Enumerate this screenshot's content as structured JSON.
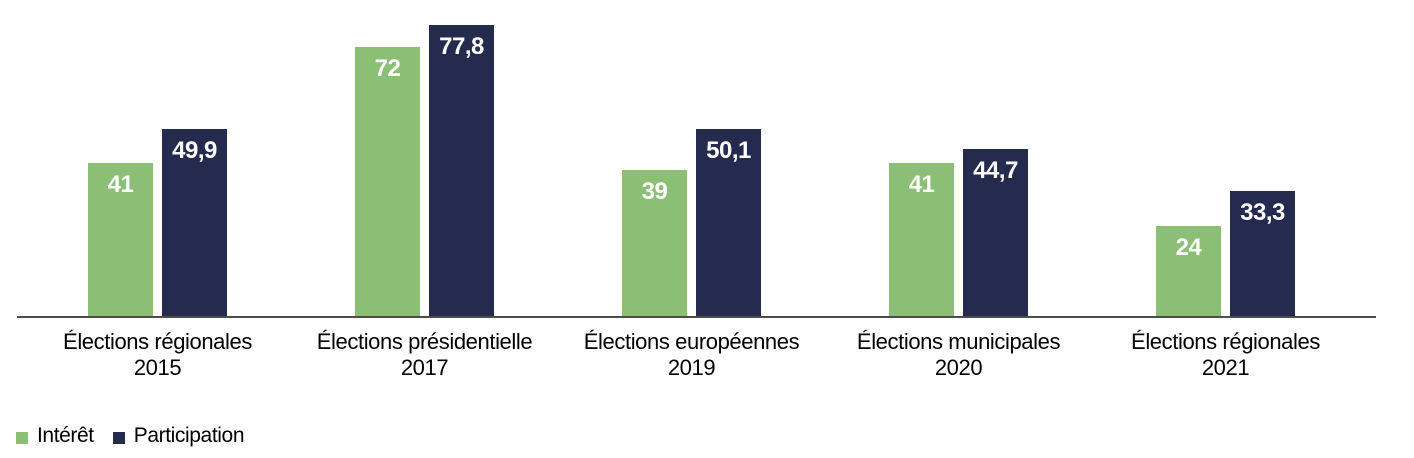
{
  "chart_data": {
    "type": "bar",
    "categories": [
      {
        "label": "Élections régionales",
        "year": "2015"
      },
      {
        "label": "Élections présidentielle",
        "year": "2017"
      },
      {
        "label": "Élections européennes",
        "year": "2019"
      },
      {
        "label": "Élections municipales",
        "year": "2020"
      },
      {
        "label": "Élections régionales",
        "year": "2021"
      }
    ],
    "series": [
      {
        "name": "Intérêt",
        "color": "#8bbf75",
        "values": [
          41,
          72,
          39,
          41,
          24
        ],
        "labels": [
          "41",
          "72",
          "39",
          "41",
          "24"
        ]
      },
      {
        "name": "Participation",
        "color": "#252b4f",
        "values": [
          49.9,
          77.8,
          50.1,
          44.7,
          33.3
        ],
        "labels": [
          "49,9",
          "77,8",
          "50,1",
          "44,7",
          "33,3"
        ]
      }
    ],
    "title": "",
    "xlabel": "",
    "ylabel": "",
    "ylim": [
      0,
      85
    ],
    "grid": false,
    "legend_position": "bottom-left",
    "axis_color": "#4d4d4d",
    "value_label_color": "#ffffff"
  }
}
